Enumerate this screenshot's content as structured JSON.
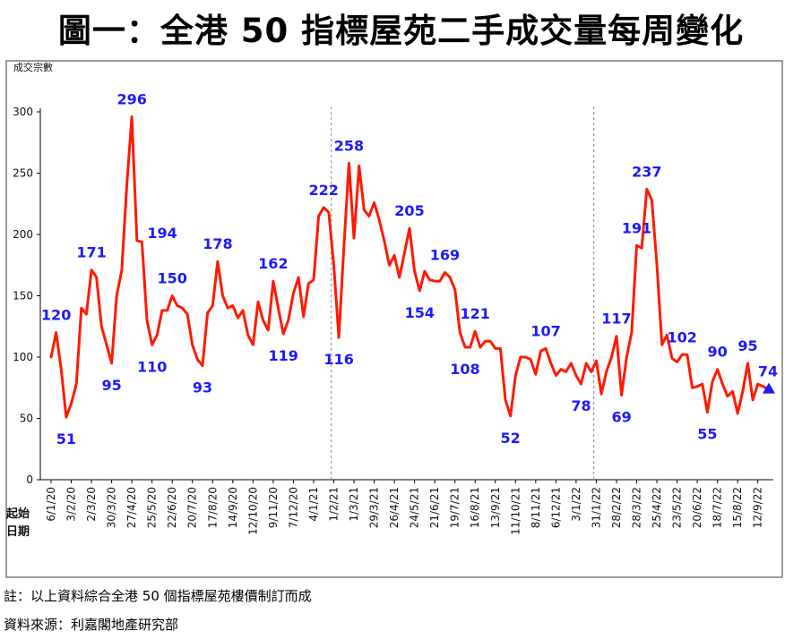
{
  "title": "圖一：全港 50 指標屋苑二手成交量每周變化",
  "footnote": "註：以上資料綜合全港 50 個指標屋苑樓價制訂而成",
  "source": "資料來源：利嘉閣地產研究部",
  "colors": {
    "line": "#ff1a00",
    "label": "#1a1aff",
    "grid": "#888888",
    "marker": "#1a1aff"
  },
  "chart_data": {
    "type": "line",
    "ylabel": "成交宗數",
    "xlabel": "起始日期",
    "ylim": [
      0,
      300
    ],
    "yticks": [
      0,
      50,
      100,
      150,
      200,
      250,
      300
    ],
    "grid": false,
    "year_dividers_after_week": [
      56,
      108
    ],
    "x_tick_every": 4,
    "x_tick_labels": [
      "6/1/20",
      "3/2/20",
      "2/3/20",
      "30/3/20",
      "27/4/20",
      "25/5/20",
      "22/6/20",
      "20/7/20",
      "17/8/20",
      "14/9/20",
      "12/10/20",
      "9/11/20",
      "7/12/20",
      "4/1/21",
      "1/2/21",
      "1/3/21",
      "29/3/21",
      "26/4/21",
      "24/5/21",
      "21/6/21",
      "19/7/21",
      "16/8/21",
      "13/9/21",
      "11/10/21",
      "8/11/21",
      "6/12/21",
      "3/1/22",
      "31/1/22",
      "28/2/22",
      "28/3/22",
      "25/4/22",
      "23/5/22",
      "20/6/22",
      "18/7/22",
      "15/8/22",
      "12/9/22"
    ],
    "values": [
      100,
      120,
      90,
      51,
      62,
      78,
      140,
      135,
      171,
      165,
      125,
      110,
      95,
      150,
      171,
      240,
      296,
      195,
      194,
      130,
      110,
      118,
      138,
      138,
      150,
      142,
      140,
      135,
      110,
      98,
      93,
      136,
      142,
      178,
      150,
      140,
      142,
      132,
      138,
      118,
      110,
      145,
      130,
      122,
      162,
      140,
      119,
      130,
      152,
      165,
      133,
      160,
      163,
      215,
      222,
      218,
      175,
      116,
      190,
      258,
      197,
      256,
      220,
      215,
      226,
      212,
      195,
      175,
      183,
      165,
      185,
      205,
      170,
      154,
      170,
      163,
      162,
      162,
      169,
      165,
      155,
      120,
      108,
      108,
      121,
      108,
      113,
      113,
      107,
      107,
      65,
      52,
      85,
      100,
      100,
      98,
      86,
      105,
      107,
      95,
      85,
      90,
      88,
      95,
      85,
      78,
      95,
      88,
      97,
      70,
      88,
      100,
      117,
      69,
      100,
      120,
      191,
      189,
      237,
      228,
      175,
      110,
      118,
      99,
      96,
      102,
      102,
      75,
      76,
      78,
      55,
      80,
      90,
      78,
      68,
      72,
      54,
      72,
      95,
      65,
      78,
      76,
      74
    ],
    "data_labels": [
      {
        "index": 1,
        "text": "120",
        "pos": "above"
      },
      {
        "index": 3,
        "text": "51",
        "pos": "below"
      },
      {
        "index": 8,
        "text": "171",
        "pos": "above"
      },
      {
        "index": 12,
        "text": "95",
        "pos": "below"
      },
      {
        "index": 16,
        "text": "296",
        "pos": "above"
      },
      {
        "index": 18,
        "text": "194",
        "pos": "right"
      },
      {
        "index": 20,
        "text": "110",
        "pos": "below"
      },
      {
        "index": 24,
        "text": "150",
        "pos": "above"
      },
      {
        "index": 30,
        "text": "93",
        "pos": "below"
      },
      {
        "index": 33,
        "text": "178",
        "pos": "above"
      },
      {
        "index": 44,
        "text": "162",
        "pos": "above"
      },
      {
        "index": 46,
        "text": "119",
        "pos": "below"
      },
      {
        "index": 54,
        "text": "222",
        "pos": "above"
      },
      {
        "index": 57,
        "text": "116",
        "pos": "below"
      },
      {
        "index": 59,
        "text": "258",
        "pos": "above"
      },
      {
        "index": 71,
        "text": "205",
        "pos": "above"
      },
      {
        "index": 73,
        "text": "154",
        "pos": "below"
      },
      {
        "index": 78,
        "text": "169",
        "pos": "above"
      },
      {
        "index": 82,
        "text": "108",
        "pos": "below"
      },
      {
        "index": 84,
        "text": "121",
        "pos": "above"
      },
      {
        "index": 91,
        "text": "52",
        "pos": "below"
      },
      {
        "index": 98,
        "text": "107",
        "pos": "above"
      },
      {
        "index": 105,
        "text": "78",
        "pos": "below"
      },
      {
        "index": 112,
        "text": "117",
        "pos": "above"
      },
      {
        "index": 113,
        "text": "69",
        "pos": "below"
      },
      {
        "index": 116,
        "text": "191",
        "pos": "above"
      },
      {
        "index": 118,
        "text": "237",
        "pos": "above"
      },
      {
        "index": 125,
        "text": "102",
        "pos": "above"
      },
      {
        "index": 130,
        "text": "55",
        "pos": "below"
      },
      {
        "index": 132,
        "text": "90",
        "pos": "above"
      },
      {
        "index": 138,
        "text": "95",
        "pos": "above"
      },
      {
        "index": 142,
        "text": "74",
        "pos": "above"
      }
    ]
  }
}
